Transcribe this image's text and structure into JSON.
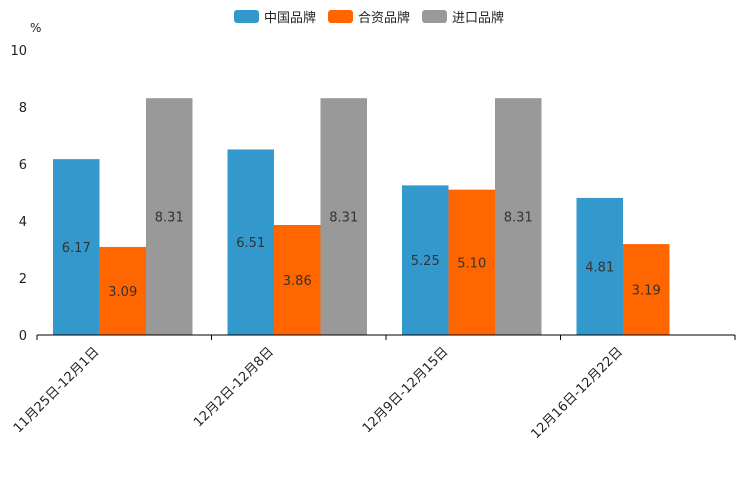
{
  "chart_data": {
    "type": "bar",
    "unit_label": "%",
    "categories": [
      "11月25日-12月1日",
      "12月2日-12月8日",
      "12月9日-12月15日",
      "12月16日-12月22日"
    ],
    "series": [
      {
        "name": "中国品牌",
        "color": "#3399cc",
        "values": [
          6.17,
          6.51,
          5.25,
          4.81
        ]
      },
      {
        "name": "合资品牌",
        "color": "#ff6600",
        "values": [
          3.09,
          3.86,
          5.1,
          3.19
        ]
      },
      {
        "name": "进口品牌",
        "color": "#999999",
        "values": [
          8.31,
          8.31,
          8.31,
          null
        ]
      }
    ],
    "data_labels": [
      [
        "6.17",
        "6.51",
        "5.25",
        "4.81"
      ],
      [
        "3.09",
        "3.86",
        "5.10",
        "3.19"
      ],
      [
        "8.31",
        "8.31",
        "8.31",
        ""
      ]
    ],
    "ylim": [
      0,
      10
    ],
    "yticks": [
      0,
      2,
      4,
      6,
      8,
      10
    ],
    "ytick_labels": [
      "0",
      "2",
      "4",
      "6",
      "8",
      "10"
    ],
    "legend_position": "top-center",
    "grid": false
  }
}
